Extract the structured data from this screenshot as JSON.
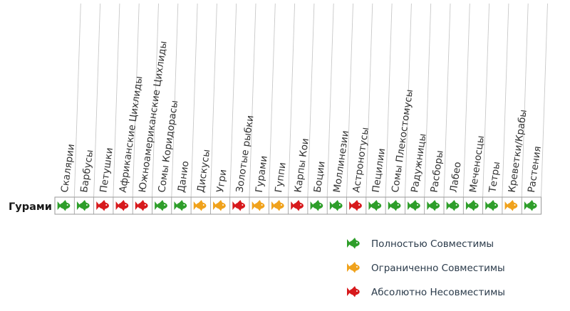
{
  "colors": {
    "compatible": "#2e9e2a",
    "limited": "#f0a21c",
    "incompatible": "#d7191c",
    "grid": "#c8c8c8",
    "cell_border": "#9a9a9a"
  },
  "chart_data": {
    "type": "table",
    "row_label": "Гурами",
    "columns": [
      "Скалярии",
      "Барбусы",
      "Петушки",
      "Африканские Цихлиды",
      "Южноамериканские Цихлиды",
      "Сомы Коридорасы",
      "Данио",
      "Дискусы",
      "Угри",
      "Золотые рыбки",
      "Гурами",
      "Гуппи",
      "Карпы Кои",
      "Боции",
      "Моллинезии",
      "Астронотусы",
      "Пецилии",
      "Сомы Плекостомусы",
      "Радужницы",
      "Расборы",
      "Лабео",
      "Меченосцы",
      "Тетры",
      "Креветки/Крабы",
      "Растения"
    ],
    "values": [
      "compatible",
      "compatible",
      "incompatible",
      "incompatible",
      "incompatible",
      "compatible",
      "compatible",
      "limited",
      "limited",
      "incompatible",
      "limited",
      "limited",
      "incompatible",
      "compatible",
      "compatible",
      "incompatible",
      "compatible",
      "compatible",
      "compatible",
      "compatible",
      "compatible",
      "compatible",
      "compatible",
      "limited",
      "compatible"
    ],
    "legend": [
      {
        "key": "compatible",
        "label": "Полностью Совместимы"
      },
      {
        "key": "limited",
        "label": "Ограниченно  Совместимы"
      },
      {
        "key": "incompatible",
        "label": "Абсолютно  Несовместимы"
      }
    ]
  }
}
